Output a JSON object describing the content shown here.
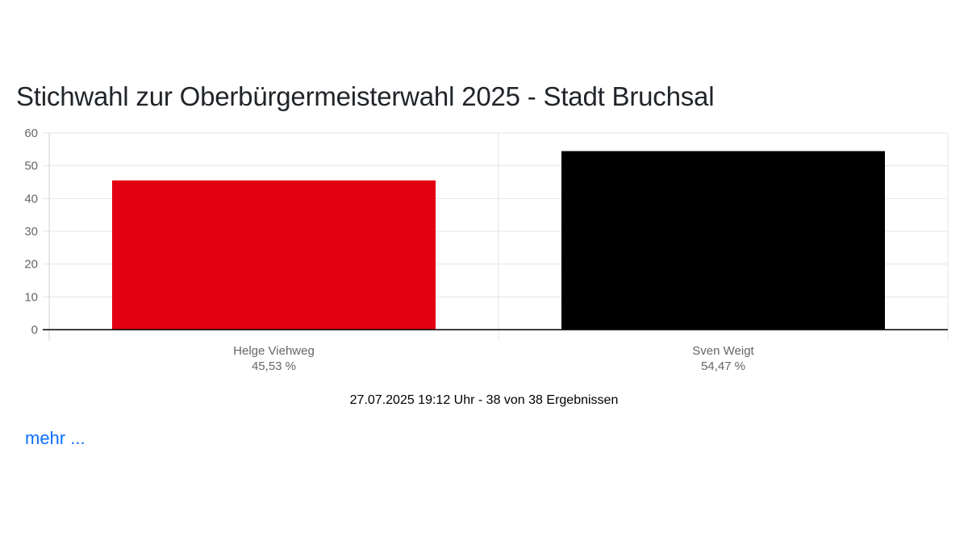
{
  "header": {
    "title": "Stichwahl zur Oberbürgermeisterwahl 2025 - Stadt Bruchsal"
  },
  "chart_data": {
    "type": "bar",
    "categories": [
      "Helge Viehweg",
      "Sven Weigt"
    ],
    "values": [
      45.53,
      54.47
    ],
    "value_labels": [
      "45,53 %",
      "54,47 %"
    ],
    "colors": [
      "#e30013",
      "#000000"
    ],
    "ylim": [
      0,
      60
    ],
    "yticks": [
      "0",
      "10",
      "20",
      "30",
      "40",
      "50",
      "60"
    ],
    "grid": true,
    "legend": "none",
    "xlabel": "",
    "ylabel": ""
  },
  "footer": {
    "status": "27.07.2025 19:12 Uhr - 38 von 38 Ergebnissen",
    "more_label": "mehr ..."
  }
}
